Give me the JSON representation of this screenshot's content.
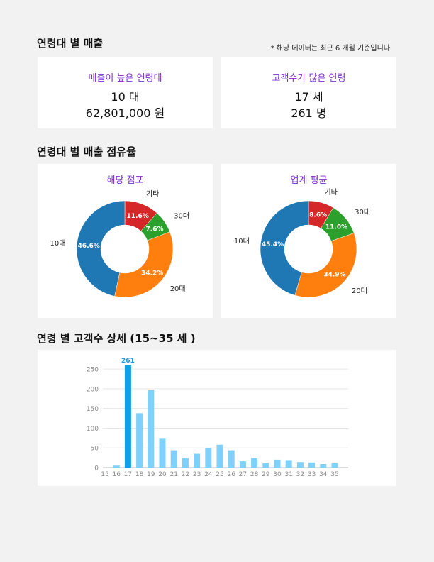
{
  "section1": {
    "title": "연령대 별 매출",
    "note": "* 해당 데이터는 최근 6 개월 기준입니다"
  },
  "cards": [
    {
      "label": "매출이 높은 연령대",
      "value1": "10 대",
      "value2": "62,801,000 원"
    },
    {
      "label": "고객수가 많은 연령",
      "value1": "17 세",
      "value2": "261 명"
    }
  ],
  "section2": {
    "title": "연령대 별 매출 점유율"
  },
  "section3": {
    "title": "연령 별 고객수 상세 (15~35 세 )"
  },
  "colors": {
    "10대": "#1f77b4",
    "20대": "#ff7f0e",
    "30대": "#2ca02c",
    "기타": "#d62728",
    "bar": "#7fd0fa",
    "bar_highlight": "#0ea0e8",
    "accent": "#7b2fd4"
  },
  "chart_data": [
    {
      "type": "pie",
      "title": "해당 점포",
      "categories": [
        "기타",
        "30대",
        "20대",
        "10대"
      ],
      "values": [
        11.6,
        7.6,
        34.2,
        46.6
      ],
      "value_labels": [
        "11.6%",
        "7.6%",
        "34.2%",
        "46.6%"
      ]
    },
    {
      "type": "pie",
      "title": "업계 평균",
      "categories": [
        "기타",
        "30대",
        "20대",
        "10대"
      ],
      "values": [
        8.6,
        11.0,
        34.9,
        45.4
      ],
      "value_labels": [
        "8.6%",
        "11.0%",
        "34.9%",
        "45.4%"
      ]
    },
    {
      "type": "bar",
      "categories": [
        "15",
        "16",
        "17",
        "18",
        "19",
        "20",
        "21",
        "22",
        "23",
        "24",
        "25",
        "26",
        "27",
        "28",
        "29",
        "30",
        "31",
        "32",
        "33",
        "34",
        "35"
      ],
      "values": [
        0,
        5,
        261,
        138,
        198,
        75,
        44,
        24,
        35,
        49,
        58,
        44,
        16,
        24,
        11,
        20,
        19,
        14,
        13,
        9,
        11
      ],
      "highlight_index": 2,
      "highlight_label": "261",
      "yticks": [
        "0",
        "50",
        "100",
        "150",
        "200",
        "250"
      ],
      "ylim": [
        0,
        270
      ],
      "grid": true
    }
  ]
}
